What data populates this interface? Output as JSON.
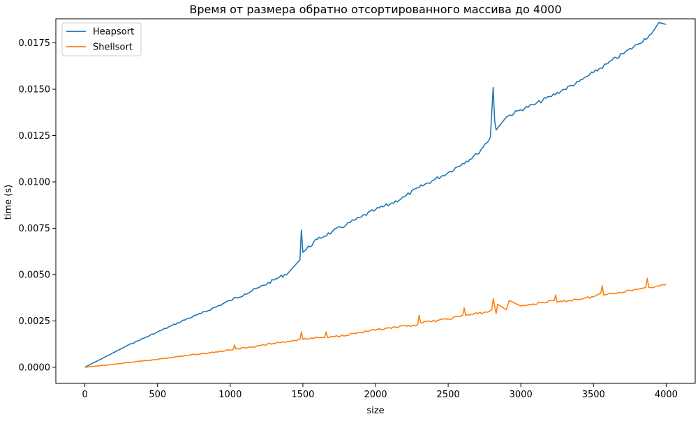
{
  "chart_data": {
    "type": "line",
    "title": "Время от размера обратно отсортированного массива до 4000",
    "xlabel": "size",
    "ylabel": "time (s)",
    "xlim": [
      -200,
      4200
    ],
    "ylim": [
      -0.00087,
      0.0188
    ],
    "x_ticks": [
      0,
      500,
      1000,
      1500,
      2000,
      2500,
      3000,
      3500,
      4000
    ],
    "x_tick_labels": [
      "0",
      "500",
      "1000",
      "1500",
      "2000",
      "2500",
      "3000",
      "3500",
      "4000"
    ],
    "y_ticks": [
      0.0,
      0.0025,
      0.005,
      0.0075,
      0.01,
      0.0125,
      0.015,
      0.0175
    ],
    "y_tick_labels": [
      "0.0000",
      "0.0025",
      "0.0050",
      "0.0075",
      "0.0100",
      "0.0125",
      "0.0150",
      "0.0175"
    ],
    "grid": false,
    "legend_position": "top-left",
    "series": [
      {
        "name": "Heapsort",
        "color": "#1f77b4",
        "x": [
          0,
          100,
          200,
          300,
          400,
          500,
          600,
          700,
          800,
          900,
          1000,
          1100,
          1200,
          1300,
          1400,
          1480,
          1490,
          1500,
          1600,
          1700,
          1800,
          1900,
          2000,
          2100,
          2200,
          2300,
          2400,
          2500,
          2600,
          2700,
          2790,
          2810,
          2820,
          2830,
          2900,
          3000,
          3100,
          3200,
          3300,
          3400,
          3500,
          3600,
          3700,
          3800,
          3900,
          3950,
          4000
        ],
        "y": [
          0.0,
          0.0004,
          0.0008,
          0.0012,
          0.00155,
          0.0019,
          0.00225,
          0.0026,
          0.0029,
          0.00325,
          0.0036,
          0.00395,
          0.0043,
          0.0047,
          0.0051,
          0.0058,
          0.0074,
          0.0062,
          0.0069,
          0.0073,
          0.0077,
          0.0081,
          0.0085,
          0.0088,
          0.0092,
          0.0097,
          0.0101,
          0.0105,
          0.011,
          0.0115,
          0.0124,
          0.0151,
          0.0133,
          0.0128,
          0.0135,
          0.0139,
          0.0142,
          0.0146,
          0.015,
          0.0154,
          0.0159,
          0.0164,
          0.0169,
          0.0174,
          0.018,
          0.0186,
          0.0185
        ]
      },
      {
        "name": "Shellsort",
        "color": "#ff7f0e",
        "x": [
          0,
          100,
          250,
          260,
          500,
          510,
          1000,
          1020,
          1030,
          1040,
          1480,
          1490,
          1500,
          1600,
          1650,
          1660,
          1670,
          2000,
          2290,
          2300,
          2310,
          2500,
          2600,
          2610,
          2620,
          2780,
          2800,
          2810,
          2830,
          2840,
          2900,
          2920,
          3000,
          3230,
          3240,
          3250,
          3500,
          3550,
          3560,
          3570,
          3800,
          3860,
          3870,
          3880,
          3900,
          4000
        ],
        "y": [
          0.0,
          8e-05,
          0.0002,
          0.00022,
          0.00042,
          0.00045,
          0.00092,
          0.00095,
          0.0012,
          0.00098,
          0.0015,
          0.0019,
          0.0015,
          0.0016,
          0.0016,
          0.0019,
          0.0016,
          0.002,
          0.0023,
          0.0028,
          0.0024,
          0.0026,
          0.0028,
          0.0032,
          0.0028,
          0.003,
          0.0031,
          0.0037,
          0.0029,
          0.0034,
          0.0031,
          0.0036,
          0.0033,
          0.0036,
          0.0039,
          0.0035,
          0.0038,
          0.004,
          0.0044,
          0.0039,
          0.0042,
          0.0043,
          0.0048,
          0.0043,
          0.0043,
          0.0045
        ]
      }
    ]
  }
}
